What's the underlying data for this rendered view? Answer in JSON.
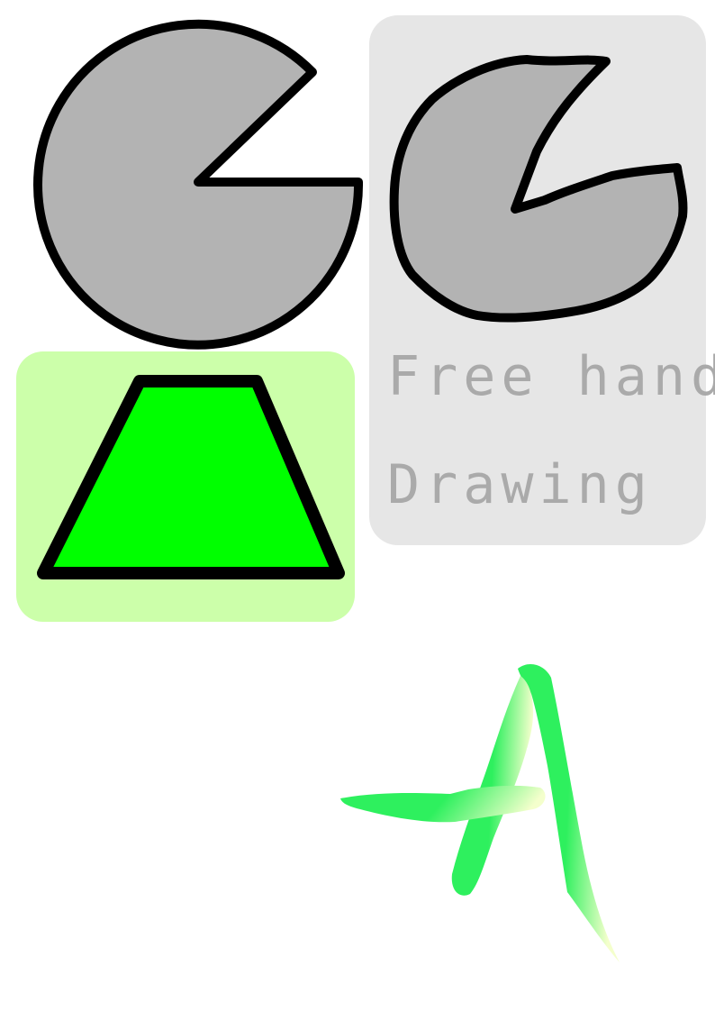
{
  "panels": {
    "freehand": {
      "line1": "Free hand",
      "line2": "Drawing",
      "background": "#e6e6e6",
      "text_color": "#aaaaaa"
    },
    "trapezoid": {
      "background": "#ccffaa",
      "fill": "#00ff00"
    }
  },
  "shapes": {
    "pie_fill": "#b3b3b3",
    "stroke": "#000000"
  },
  "letter": {
    "name": "a-letter-brush-stroke",
    "color_start": "#2ef05e",
    "color_end": "#f4ffcc"
  }
}
